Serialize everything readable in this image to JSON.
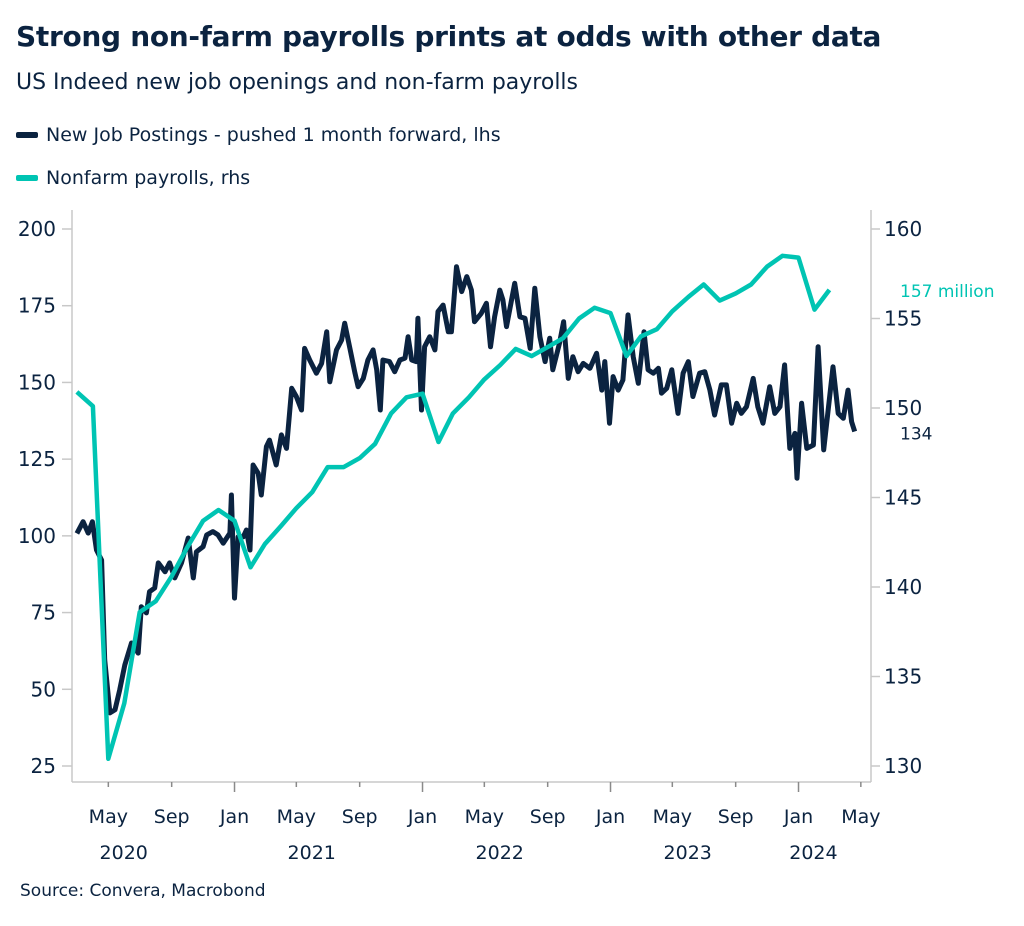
{
  "title": "Strong non-farm payrolls prints at odds with other data",
  "subtitle": "US Indeed new job openings and non-farm payrolls",
  "source": "Source: Convera, Macrobond",
  "colors": {
    "postings": "#0b2340",
    "payrolls": "#00c4b3",
    "axis": "#c8c8c8",
    "text": "#0b2340"
  },
  "chart_data": {
    "type": "line",
    "title": "Strong non-farm payrolls prints at odds with other data",
    "subtitle": "US Indeed new job openings and non-farm payrolls",
    "legend_position": "top-left",
    "grid": false,
    "x_axis": {
      "type": "date",
      "range": [
        "2020-03-01",
        "2024-05-01"
      ],
      "tick_labels": [
        {
          "date": "2020-05-01",
          "label": "May"
        },
        {
          "date": "2020-09-01",
          "label": "Sep"
        },
        {
          "date": "2021-01-01",
          "label": "Jan"
        },
        {
          "date": "2021-05-01",
          "label": "May"
        },
        {
          "date": "2021-09-01",
          "label": "Sep"
        },
        {
          "date": "2022-01-01",
          "label": "Jan"
        },
        {
          "date": "2022-05-01",
          "label": "May"
        },
        {
          "date": "2022-09-01",
          "label": "Sep"
        },
        {
          "date": "2023-01-01",
          "label": "Jan"
        },
        {
          "date": "2023-05-01",
          "label": "May"
        },
        {
          "date": "2023-09-01",
          "label": "Sep"
        },
        {
          "date": "2024-01-01",
          "label": "Jan"
        },
        {
          "date": "2024-05-01",
          "label": "May"
        }
      ],
      "year_labels": [
        {
          "date": "2020-07-01",
          "label": "2020"
        },
        {
          "date": "2021-07-01",
          "label": "2021"
        },
        {
          "date": "2022-07-01",
          "label": "2022"
        },
        {
          "date": "2023-07-01",
          "label": "2023"
        },
        {
          "date": "2024-03-01",
          "label": "2024"
        }
      ]
    },
    "y_left": {
      "range": [
        25,
        200
      ],
      "ticks": [
        25,
        50,
        75,
        100,
        125,
        150,
        175,
        200
      ]
    },
    "y_right": {
      "range": [
        130,
        160
      ],
      "ticks": [
        130,
        135,
        140,
        145,
        150,
        155,
        160
      ]
    },
    "end_labels": [
      {
        "series": "payrolls",
        "text": "157 million"
      },
      {
        "series": "postings",
        "text": "134"
      }
    ],
    "series": [
      {
        "key": "postings",
        "name": "New Job Postings - pushed 1 month forward, lhs",
        "axis": "left",
        "points": [
          [
            "2020-03-01",
            100.8
          ],
          [
            "2020-03-13",
            104.6
          ],
          [
            "2020-03-23",
            100.9
          ],
          [
            "2020-03-31",
            104.6
          ],
          [
            "2020-04-08",
            95.4
          ],
          [
            "2020-04-18",
            92.1
          ],
          [
            "2020-04-24",
            59.6
          ],
          [
            "2020-05-04",
            42.3
          ],
          [
            "2020-05-14",
            43.3
          ],
          [
            "2020-05-23",
            49.8
          ],
          [
            "2020-06-02",
            57.9
          ],
          [
            "2020-06-15",
            65.1
          ],
          [
            "2020-06-28",
            61.8
          ],
          [
            "2020-07-04",
            76.9
          ],
          [
            "2020-07-14",
            74.9
          ],
          [
            "2020-07-20",
            81.8
          ],
          [
            "2020-07-30",
            83.0
          ],
          [
            "2020-08-06",
            91.2
          ],
          [
            "2020-08-19",
            88.3
          ],
          [
            "2020-08-28",
            91.2
          ],
          [
            "2020-09-07",
            86.3
          ],
          [
            "2020-09-20",
            91.2
          ],
          [
            "2020-10-03",
            99.3
          ],
          [
            "2020-10-13",
            86.3
          ],
          [
            "2020-10-19",
            94.8
          ],
          [
            "2020-11-01",
            96.5
          ],
          [
            "2020-11-08",
            100.3
          ],
          [
            "2020-11-20",
            101.4
          ],
          [
            "2020-11-30",
            100.3
          ],
          [
            "2020-12-10",
            97.6
          ],
          [
            "2020-12-23",
            100.9
          ],
          [
            "2020-12-26",
            113.3
          ],
          [
            "2021-01-01",
            79.7
          ],
          [
            "2021-01-08",
            99.7
          ],
          [
            "2021-01-18",
            99.7
          ],
          [
            "2021-01-24",
            101.9
          ],
          [
            "2021-01-31",
            95.4
          ],
          [
            "2021-02-06",
            123.1
          ],
          [
            "2021-02-16",
            120.4
          ],
          [
            "2021-02-22",
            113.3
          ],
          [
            "2021-03-04",
            129.1
          ],
          [
            "2021-03-10",
            131.2
          ],
          [
            "2021-03-23",
            123.1
          ],
          [
            "2021-04-02",
            132.9
          ],
          [
            "2021-04-12",
            128.5
          ],
          [
            "2021-04-22",
            148.1
          ],
          [
            "2021-05-01",
            145.4
          ],
          [
            "2021-05-11",
            141.0
          ],
          [
            "2021-05-17",
            161.1
          ],
          [
            "2021-05-27",
            157.3
          ],
          [
            "2021-06-09",
            153.0
          ],
          [
            "2021-06-19",
            156.2
          ],
          [
            "2021-06-29",
            166.5
          ],
          [
            "2021-07-05",
            150.2
          ],
          [
            "2021-07-18",
            160.6
          ],
          [
            "2021-07-28",
            163.8
          ],
          [
            "2021-08-03",
            169.3
          ],
          [
            "2021-08-13",
            161.1
          ],
          [
            "2021-08-23",
            153.0
          ],
          [
            "2021-08-29",
            148.6
          ],
          [
            "2021-09-08",
            151.3
          ],
          [
            "2021-09-17",
            157.3
          ],
          [
            "2021-09-27",
            160.6
          ],
          [
            "2021-10-04",
            154.1
          ],
          [
            "2021-10-11",
            141.0
          ],
          [
            "2021-10-16",
            157.3
          ],
          [
            "2021-10-29",
            156.8
          ],
          [
            "2021-11-08",
            153.5
          ],
          [
            "2021-11-18",
            157.3
          ],
          [
            "2021-11-28",
            157.9
          ],
          [
            "2021-12-04",
            164.9
          ],
          [
            "2021-12-11",
            157.3
          ],
          [
            "2021-12-20",
            156.8
          ],
          [
            "2021-12-23",
            170.9
          ],
          [
            "2021-12-30",
            141.0
          ],
          [
            "2022-01-05",
            161.6
          ],
          [
            "2022-01-15",
            164.9
          ],
          [
            "2022-01-25",
            160.6
          ],
          [
            "2022-01-31",
            173.1
          ],
          [
            "2022-02-10",
            175.2
          ],
          [
            "2022-02-20",
            166.5
          ],
          [
            "2022-02-26",
            166.5
          ],
          [
            "2022-03-08",
            187.7
          ],
          [
            "2022-03-18",
            179.6
          ],
          [
            "2022-03-28",
            184.5
          ],
          [
            "2022-04-06",
            180.1
          ],
          [
            "2022-04-12",
            169.8
          ],
          [
            "2022-04-25",
            172.5
          ],
          [
            "2022-05-05",
            175.8
          ],
          [
            "2022-05-13",
            161.6
          ],
          [
            "2022-05-21",
            171.4
          ],
          [
            "2022-05-31",
            180.1
          ],
          [
            "2022-06-06",
            176.9
          ],
          [
            "2022-06-13",
            168.2
          ],
          [
            "2022-06-29",
            182.3
          ],
          [
            "2022-07-09",
            171.4
          ],
          [
            "2022-07-19",
            170.9
          ],
          [
            "2022-07-29",
            161.1
          ],
          [
            "2022-08-07",
            180.7
          ],
          [
            "2022-08-17",
            164.9
          ],
          [
            "2022-08-27",
            156.8
          ],
          [
            "2022-09-05",
            164.4
          ],
          [
            "2022-09-11",
            154.1
          ],
          [
            "2022-09-24",
            162.8
          ],
          [
            "2022-10-02",
            169.8
          ],
          [
            "2022-10-11",
            151.3
          ],
          [
            "2022-10-20",
            158.4
          ],
          [
            "2022-10-30",
            153.5
          ],
          [
            "2022-11-09",
            156.2
          ],
          [
            "2022-11-22",
            154.6
          ],
          [
            "2022-12-05",
            159.5
          ],
          [
            "2022-12-15",
            147.5
          ],
          [
            "2022-12-21",
            156.8
          ],
          [
            "2022-12-30",
            136.7
          ],
          [
            "2023-01-06",
            151.9
          ],
          [
            "2023-01-16",
            147.5
          ],
          [
            "2023-01-25",
            150.8
          ],
          [
            "2023-02-04",
            172.0
          ],
          [
            "2023-02-14",
            158.4
          ],
          [
            "2023-02-24",
            149.7
          ],
          [
            "2023-03-07",
            166.5
          ],
          [
            "2023-03-15",
            154.1
          ],
          [
            "2023-03-25",
            153.0
          ],
          [
            "2023-04-04",
            154.6
          ],
          [
            "2023-04-10",
            146.5
          ],
          [
            "2023-04-20",
            148.1
          ],
          [
            "2023-04-30",
            154.1
          ],
          [
            "2023-05-12",
            139.9
          ],
          [
            "2023-05-22",
            153.0
          ],
          [
            "2023-06-01",
            156.8
          ],
          [
            "2023-06-10",
            145.4
          ],
          [
            "2023-06-23",
            153.0
          ],
          [
            "2023-07-03",
            153.5
          ],
          [
            "2023-07-13",
            147.5
          ],
          [
            "2023-07-22",
            139.4
          ],
          [
            "2023-08-04",
            149.2
          ],
          [
            "2023-08-14",
            149.2
          ],
          [
            "2023-08-24",
            136.7
          ],
          [
            "2023-09-03",
            143.2
          ],
          [
            "2023-09-12",
            139.9
          ],
          [
            "2023-09-22",
            142.1
          ],
          [
            "2023-10-05",
            151.3
          ],
          [
            "2023-10-14",
            142.1
          ],
          [
            "2023-10-24",
            136.7
          ],
          [
            "2023-11-06",
            148.6
          ],
          [
            "2023-11-16",
            139.9
          ],
          [
            "2023-11-26",
            142.1
          ],
          [
            "2023-12-05",
            155.7
          ],
          [
            "2023-12-15",
            128.5
          ],
          [
            "2023-12-25",
            133.4
          ],
          [
            "2023-12-29",
            118.8
          ],
          [
            "2024-01-07",
            143.2
          ],
          [
            "2024-01-17",
            128.5
          ],
          [
            "2024-01-30",
            129.6
          ],
          [
            "2024-02-08",
            161.6
          ],
          [
            "2024-02-19",
            128.0
          ],
          [
            "2024-03-08",
            155.1
          ],
          [
            "2024-03-18",
            139.9
          ],
          [
            "2024-03-28",
            138.3
          ],
          [
            "2024-04-06",
            147.5
          ],
          [
            "2024-04-13",
            137.2
          ],
          [
            "2024-04-19",
            134.0
          ]
        ]
      },
      {
        "key": "payrolls",
        "name": "Nonfarm payrolls, rhs",
        "axis": "right",
        "points": [
          [
            "2020-03-01",
            150.9
          ],
          [
            "2020-04-01",
            150.1
          ],
          [
            "2020-05-01",
            130.4
          ],
          [
            "2020-06-01",
            133.5
          ],
          [
            "2020-07-01",
            138.6
          ],
          [
            "2020-08-01",
            139.2
          ],
          [
            "2020-09-01",
            140.6
          ],
          [
            "2020-10-01",
            142.2
          ],
          [
            "2020-11-01",
            143.7
          ],
          [
            "2020-12-01",
            144.3
          ],
          [
            "2021-01-01",
            143.7
          ],
          [
            "2021-02-01",
            141.1
          ],
          [
            "2021-03-01",
            142.4
          ],
          [
            "2021-04-01",
            143.4
          ],
          [
            "2021-05-01",
            144.4
          ],
          [
            "2021-06-01",
            145.3
          ],
          [
            "2021-07-01",
            146.7
          ],
          [
            "2021-08-01",
            146.7
          ],
          [
            "2021-09-01",
            147.2
          ],
          [
            "2021-10-01",
            148.0
          ],
          [
            "2021-11-01",
            149.7
          ],
          [
            "2021-12-01",
            150.6
          ],
          [
            "2022-01-01",
            150.8
          ],
          [
            "2022-02-01",
            148.1
          ],
          [
            "2022-03-01",
            149.7
          ],
          [
            "2022-04-01",
            150.6
          ],
          [
            "2022-05-01",
            151.6
          ],
          [
            "2022-06-01",
            152.4
          ],
          [
            "2022-07-01",
            153.3
          ],
          [
            "2022-08-01",
            152.9
          ],
          [
            "2022-09-01",
            153.4
          ],
          [
            "2022-10-01",
            153.9
          ],
          [
            "2022-11-01",
            155.0
          ],
          [
            "2022-12-01",
            155.6
          ],
          [
            "2023-01-01",
            155.3
          ],
          [
            "2023-02-01",
            152.9
          ],
          [
            "2023-03-01",
            154.0
          ],
          [
            "2023-04-01",
            154.4
          ],
          [
            "2023-05-01",
            155.4
          ],
          [
            "2023-06-01",
            156.2
          ],
          [
            "2023-07-01",
            156.9
          ],
          [
            "2023-08-01",
            156.0
          ],
          [
            "2023-09-01",
            156.4
          ],
          [
            "2023-10-01",
            156.9
          ],
          [
            "2023-11-01",
            157.9
          ],
          [
            "2023-12-01",
            158.5
          ],
          [
            "2024-01-01",
            158.4
          ],
          [
            "2024-02-01",
            155.5
          ],
          [
            "2024-03-01",
            156.6
          ]
        ]
      }
    ]
  }
}
